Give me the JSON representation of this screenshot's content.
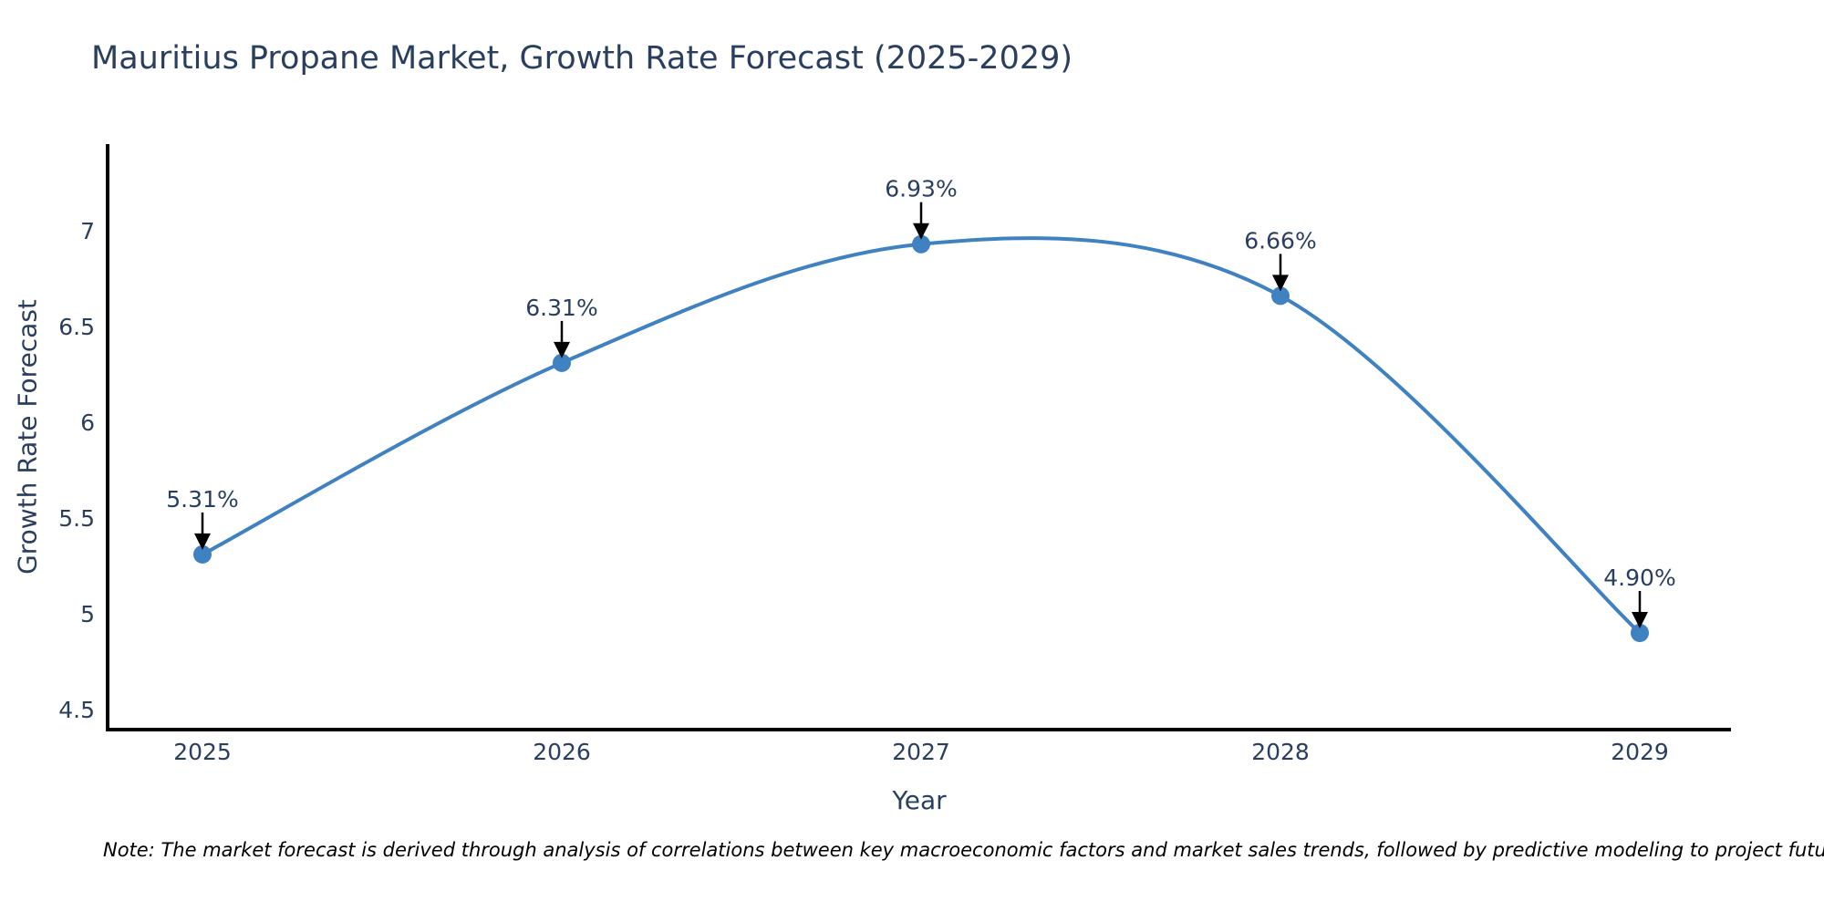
{
  "header": {
    "title": "Mauritius Propane Market, Growth Rate Forecast (2025-2029)"
  },
  "footer": {
    "note": "Note: The market forecast is derived through analysis of correlations between key macroeconomic factors and market sales trends, followed by predictive modeling to project future sales"
  },
  "chart_data": {
    "type": "line",
    "title": "Mauritius Propane Market, Growth Rate Forecast (2025-2029)",
    "xlabel": "Year",
    "ylabel": "Growth Rate Forecast",
    "x": [
      2025,
      2026,
      2027,
      2028,
      2029
    ],
    "xtick_labels": [
      "2025",
      "2026",
      "2027",
      "2028",
      "2029"
    ],
    "y": [
      5.31,
      6.31,
      6.93,
      6.66,
      4.9
    ],
    "point_labels": [
      "5.31%",
      "6.31%",
      "6.93%",
      "6.66%",
      "4.90%"
    ],
    "yticks": [
      4.5,
      5,
      5.5,
      6,
      6.5,
      7
    ],
    "ytick_labels": [
      "4.5",
      "5",
      "5.5",
      "6",
      "6.5",
      "7"
    ],
    "ylim": [
      4.37,
      7.44
    ],
    "line_shape": "spline",
    "markers": true,
    "grid": false,
    "legend": "none",
    "annotation_style": "label-above-with-down-arrow",
    "colors": {
      "line": "#3f81c1",
      "marker": "#3f81c1",
      "arrow": "#000000",
      "text": "#2a3f5f",
      "axis": "#000000",
      "note_text": "#000000",
      "background": "#ffffff"
    }
  }
}
